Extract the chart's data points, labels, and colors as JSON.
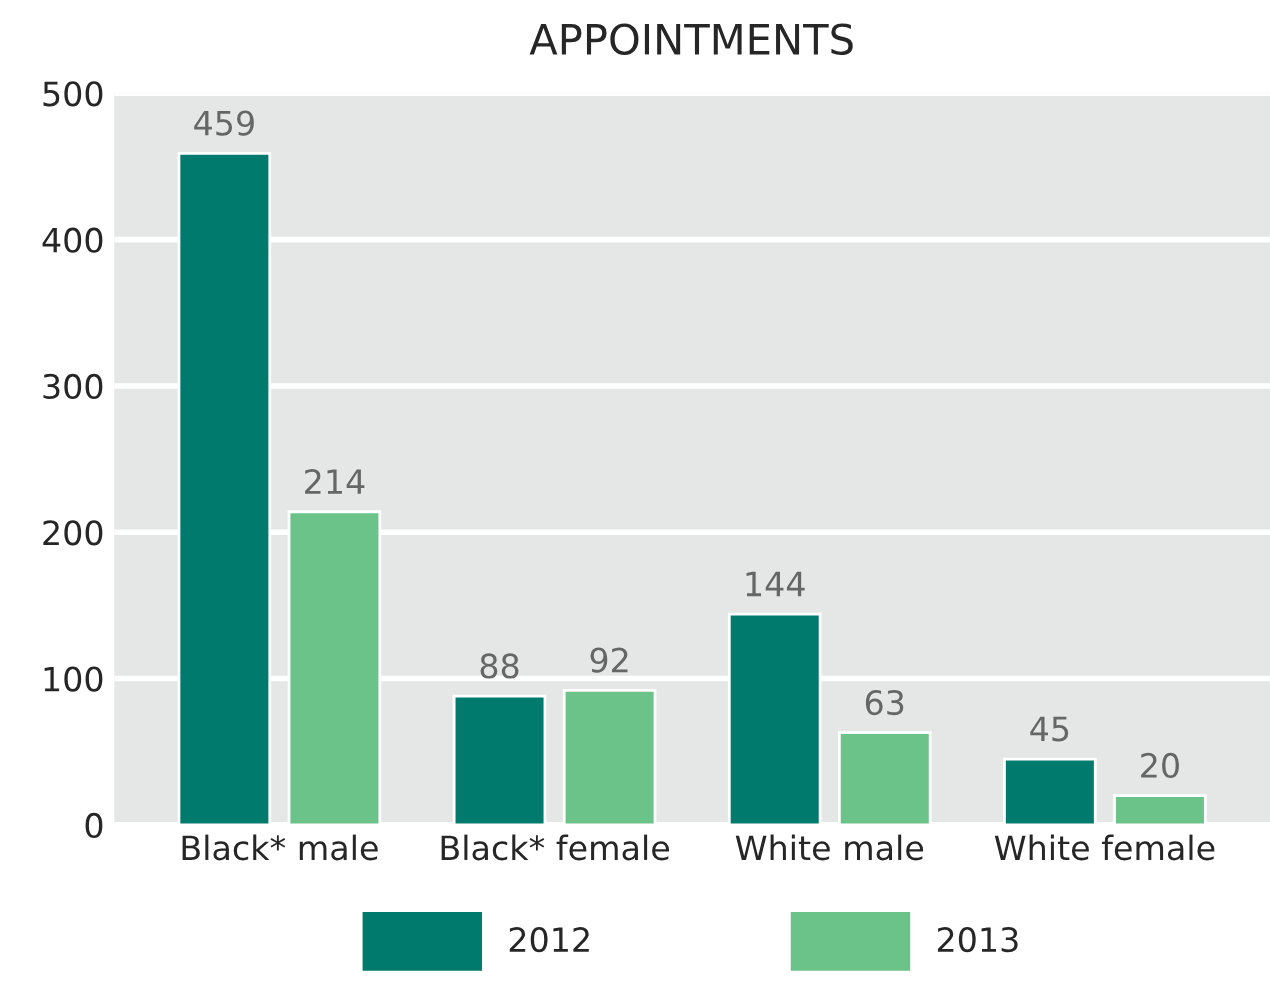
{
  "chart_data": {
    "type": "bar",
    "title": "APPOINTMENTS",
    "categories": [
      "Black* male",
      "Black* female",
      "White male",
      "White female"
    ],
    "series": [
      {
        "name": "2012",
        "color": "#007a6c",
        "values": [
          459,
          88,
          144,
          45
        ]
      },
      {
        "name": "2013",
        "color": "#6cc389",
        "values": [
          214,
          92,
          63,
          20
        ]
      }
    ],
    "ylim": [
      0,
      500
    ],
    "yticks": [
      0,
      100,
      200,
      300,
      400,
      500
    ],
    "grid": "y",
    "legend": "bottom",
    "data_labels": true
  }
}
